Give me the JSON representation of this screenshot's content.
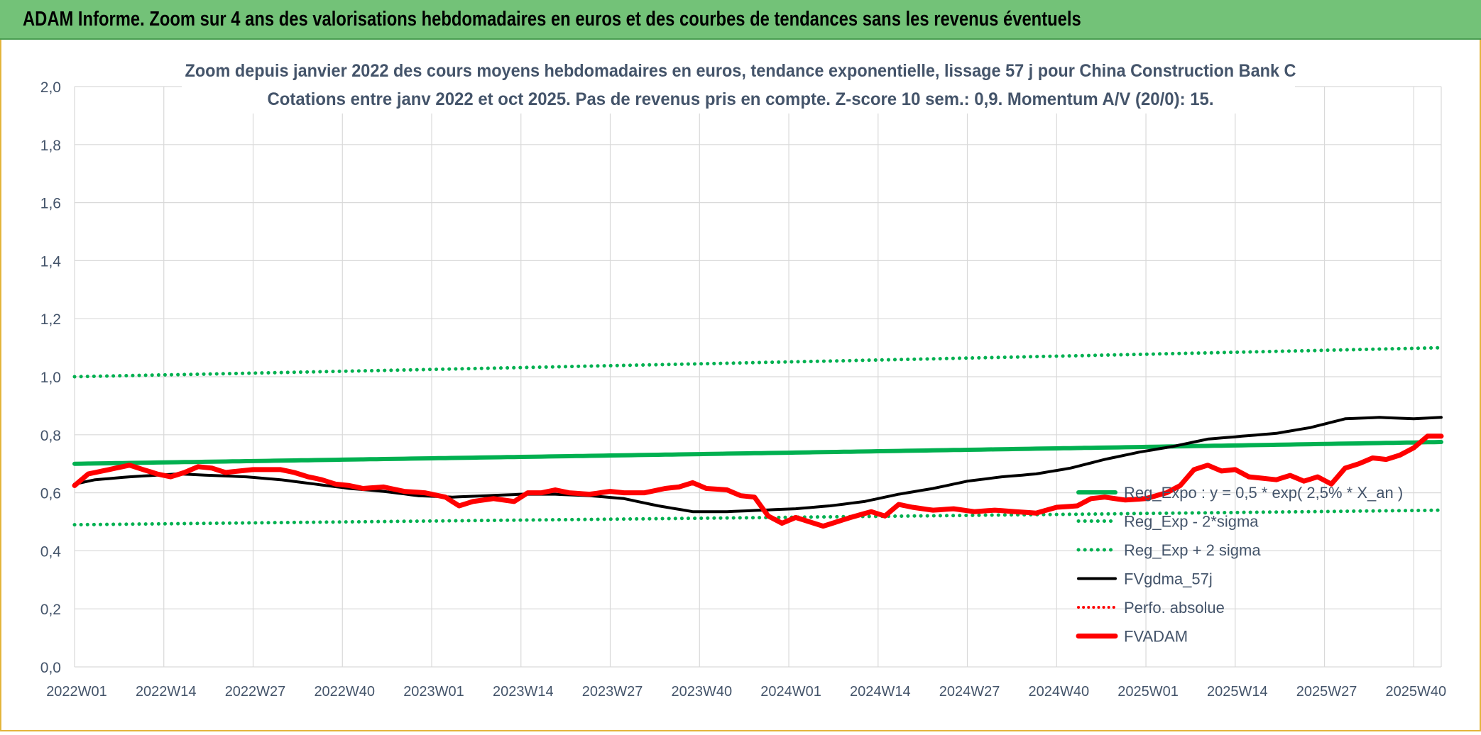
{
  "header": {
    "title": "ADAM Informe. Zoom sur 4 ans des valorisations hebdomadaires en euros et des courbes de tendances sans les revenus éventuels"
  },
  "chart_data": {
    "type": "line",
    "title": "Zoom depuis janvier 2022 des cours moyens hebdomadaires en euros, tendance exponentielle, lissage 57 j pour China Construction Bank C",
    "subtitle": "Cotations entre janv 2022 et oct 2025. Pas de revenus pris en compte. Z-score 10 sem.: 0,9. Momentum A/V (20/0): 15.",
    "xlabel": "",
    "ylabel": "",
    "ylim": [
      0,
      2.0
    ],
    "yticks": [
      "0,0",
      "0,2",
      "0,4",
      "0,6",
      "0,8",
      "1,0",
      "1,2",
      "1,4",
      "1,6",
      "1,8",
      "2,0"
    ],
    "x_tick_labels": [
      "2022W01",
      "2022W14",
      "2022W27",
      "2022W40",
      "2023W01",
      "2023W14",
      "2023W27",
      "2023W40",
      "2024W01",
      "2024W14",
      "2024W27",
      "2024W40",
      "2025W01",
      "2025W14",
      "2025W27",
      "2025W40"
    ],
    "x_tick_index": [
      0,
      13,
      26,
      39,
      52,
      65,
      78,
      91,
      104,
      117,
      130,
      143,
      156,
      169,
      182,
      195
    ],
    "n_points": 200,
    "grid": true,
    "legend_position": "bottom-right",
    "colors": {
      "reg_expo": "#00b050",
      "sigma": "#00b050",
      "fvgdma": "#000000",
      "perfo": "#ff0000",
      "fvadam": "#ff0000",
      "grid": "#d9d9d9",
      "axis_text": "#44546a"
    },
    "series": [
      {
        "name": "Reg_Expo : y = 0,5 * exp( 2,5% *  X_an )",
        "style": "solid-thick",
        "start": 0.7,
        "end": 0.775
      },
      {
        "name": "Reg_Exp - 2*sigma",
        "style": "dotted",
        "start": 0.49,
        "end": 0.54
      },
      {
        "name": "Reg_Exp + 2 sigma",
        "style": "dotted",
        "start": 1.0,
        "end": 1.1
      },
      {
        "name": "FVgdma_57j",
        "style": "solid",
        "knots": [
          [
            0,
            0.63
          ],
          [
            3,
            0.645
          ],
          [
            8,
            0.655
          ],
          [
            15,
            0.665
          ],
          [
            20,
            0.66
          ],
          [
            25,
            0.655
          ],
          [
            30,
            0.645
          ],
          [
            35,
            0.63
          ],
          [
            40,
            0.615
          ],
          [
            45,
            0.605
          ],
          [
            50,
            0.59
          ],
          [
            55,
            0.585
          ],
          [
            60,
            0.59
          ],
          [
            65,
            0.595
          ],
          [
            70,
            0.595
          ],
          [
            75,
            0.59
          ],
          [
            80,
            0.58
          ],
          [
            85,
            0.555
          ],
          [
            90,
            0.535
          ],
          [
            95,
            0.535
          ],
          [
            100,
            0.54
          ],
          [
            105,
            0.545
          ],
          [
            110,
            0.555
          ],
          [
            115,
            0.57
          ],
          [
            120,
            0.595
          ],
          [
            125,
            0.615
          ],
          [
            130,
            0.64
          ],
          [
            135,
            0.655
          ],
          [
            140,
            0.665
          ],
          [
            145,
            0.685
          ],
          [
            150,
            0.715
          ],
          [
            155,
            0.74
          ],
          [
            160,
            0.76
          ],
          [
            165,
            0.785
          ],
          [
            170,
            0.795
          ],
          [
            175,
            0.805
          ],
          [
            180,
            0.825
          ],
          [
            185,
            0.855
          ],
          [
            190,
            0.86
          ],
          [
            195,
            0.855
          ],
          [
            199,
            0.86
          ]
        ]
      },
      {
        "name": "Perfo. absolue",
        "style": "dotted",
        "values": []
      },
      {
        "name": "FVADAM",
        "style": "solid-thick",
        "knots": [
          [
            0,
            0.625
          ],
          [
            2,
            0.665
          ],
          [
            4,
            0.675
          ],
          [
            6,
            0.685
          ],
          [
            8,
            0.695
          ],
          [
            10,
            0.68
          ],
          [
            12,
            0.665
          ],
          [
            14,
            0.655
          ],
          [
            16,
            0.67
          ],
          [
            18,
            0.69
          ],
          [
            20,
            0.685
          ],
          [
            22,
            0.67
          ],
          [
            24,
            0.675
          ],
          [
            26,
            0.68
          ],
          [
            28,
            0.68
          ],
          [
            30,
            0.68
          ],
          [
            32,
            0.67
          ],
          [
            34,
            0.655
          ],
          [
            36,
            0.645
          ],
          [
            38,
            0.63
          ],
          [
            40,
            0.625
          ],
          [
            42,
            0.615
          ],
          [
            45,
            0.62
          ],
          [
            48,
            0.605
          ],
          [
            51,
            0.6
          ],
          [
            54,
            0.585
          ],
          [
            56,
            0.555
          ],
          [
            58,
            0.57
          ],
          [
            61,
            0.58
          ],
          [
            64,
            0.57
          ],
          [
            66,
            0.6
          ],
          [
            68,
            0.6
          ],
          [
            70,
            0.61
          ],
          [
            72,
            0.6
          ],
          [
            75,
            0.595
          ],
          [
            78,
            0.605
          ],
          [
            80,
            0.6
          ],
          [
            83,
            0.6
          ],
          [
            86,
            0.615
          ],
          [
            88,
            0.62
          ],
          [
            90,
            0.635
          ],
          [
            92,
            0.615
          ],
          [
            95,
            0.61
          ],
          [
            97,
            0.59
          ],
          [
            99,
            0.585
          ],
          [
            101,
            0.52
          ],
          [
            103,
            0.495
          ],
          [
            105,
            0.515
          ],
          [
            107,
            0.5
          ],
          [
            109,
            0.485
          ],
          [
            111,
            0.5
          ],
          [
            113,
            0.515
          ],
          [
            116,
            0.535
          ],
          [
            118,
            0.52
          ],
          [
            120,
            0.56
          ],
          [
            122,
            0.55
          ],
          [
            125,
            0.54
          ],
          [
            128,
            0.545
          ],
          [
            131,
            0.535
          ],
          [
            134,
            0.54
          ],
          [
            137,
            0.535
          ],
          [
            140,
            0.53
          ],
          [
            143,
            0.55
          ],
          [
            146,
            0.555
          ],
          [
            148,
            0.58
          ],
          [
            150,
            0.585
          ],
          [
            153,
            0.575
          ],
          [
            156,
            0.58
          ],
          [
            159,
            0.6
          ],
          [
            161,
            0.625
          ],
          [
            163,
            0.68
          ],
          [
            165,
            0.695
          ],
          [
            167,
            0.675
          ],
          [
            169,
            0.68
          ],
          [
            171,
            0.655
          ],
          [
            173,
            0.65
          ],
          [
            175,
            0.645
          ],
          [
            177,
            0.66
          ],
          [
            179,
            0.64
          ],
          [
            181,
            0.655
          ],
          [
            183,
            0.63
          ],
          [
            185,
            0.685
          ],
          [
            187,
            0.7
          ],
          [
            189,
            0.72
          ],
          [
            191,
            0.715
          ],
          [
            193,
            0.73
          ],
          [
            195,
            0.755
          ],
          [
            197,
            0.795
          ],
          [
            199,
            0.795
          ]
        ]
      }
    ]
  }
}
